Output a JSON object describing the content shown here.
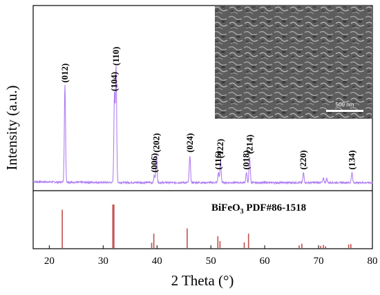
{
  "chart_data": {
    "type": "line",
    "xlabel": "2 Theta (°)",
    "ylabel": "Intensity (a.u.)",
    "xlim": [
      17,
      80
    ],
    "xticks": [
      20,
      30,
      40,
      50,
      60,
      70,
      80
    ],
    "xtick_labels": [
      "20",
      "30",
      "40",
      "50",
      "60",
      "70",
      "80"
    ],
    "pattern_color": "#b07ff0",
    "reference_color": "#c0504d",
    "peaks": [
      {
        "x": 22.9,
        "label": "(012)",
        "rel_intensity": 0.68
      },
      {
        "x": 32.1,
        "label": "(104)",
        "rel_intensity": 0.62
      },
      {
        "x": 32.4,
        "label": "(110)",
        "rel_intensity": 0.8
      },
      {
        "x": 39.5,
        "label": "(006)",
        "rel_intensity": 0.05
      },
      {
        "x": 39.9,
        "label": "(202)",
        "rel_intensity": 0.19
      },
      {
        "x": 46.1,
        "label": "(024)",
        "rel_intensity": 0.19
      },
      {
        "x": 51.4,
        "label": "(116)",
        "rel_intensity": 0.07
      },
      {
        "x": 51.8,
        "label": "(122)",
        "rel_intensity": 0.15
      },
      {
        "x": 56.6,
        "label": "(018)",
        "rel_intensity": 0.07
      },
      {
        "x": 57.2,
        "label": "(214)",
        "rel_intensity": 0.18
      },
      {
        "x": 67.2,
        "label": "(220)",
        "rel_intensity": 0.07
      },
      {
        "x": 70.9,
        "label": "",
        "rel_intensity": 0.03
      },
      {
        "x": 71.5,
        "label": "",
        "rel_intensity": 0.03
      },
      {
        "x": 76.2,
        "label": "(134)",
        "rel_intensity": 0.07
      }
    ],
    "reference": {
      "label_main": "BiFeO",
      "label_sub": "3",
      "label_rest": " PDF#86-1518",
      "lines": [
        {
          "x": 22.4,
          "h": 0.88
        },
        {
          "x": 31.8,
          "h": 1.0
        },
        {
          "x": 32.0,
          "h": 1.0
        },
        {
          "x": 39.0,
          "h": 0.12
        },
        {
          "x": 39.4,
          "h": 0.33
        },
        {
          "x": 45.6,
          "h": 0.45
        },
        {
          "x": 51.3,
          "h": 0.27
        },
        {
          "x": 51.7,
          "h": 0.16
        },
        {
          "x": 56.2,
          "h": 0.13
        },
        {
          "x": 57.0,
          "h": 0.33
        },
        {
          "x": 66.4,
          "h": 0.06
        },
        {
          "x": 66.9,
          "h": 0.1
        },
        {
          "x": 70.4,
          "h": 0.05
        },
        {
          "x": 70.9,
          "h": 0.07
        },
        {
          "x": 71.3,
          "h": 0.04
        },
        {
          "x": 75.6,
          "h": 0.08
        },
        {
          "x": 76.0,
          "h": 0.09
        }
      ]
    },
    "inset": {
      "type": "SEM micrograph",
      "scale_bar_label": "500 nm"
    }
  }
}
